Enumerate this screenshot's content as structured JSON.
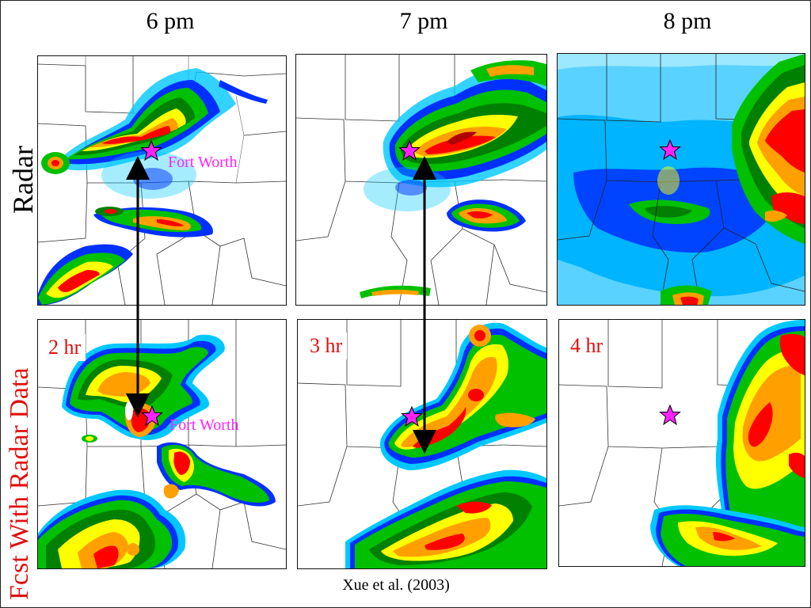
{
  "columns": {
    "col1": "6 pm",
    "col2": "7 pm",
    "col3": "8 pm"
  },
  "rows": {
    "top": "Radar",
    "bottom": "Fcst With Radar Data"
  },
  "panels": {
    "radar": [
      {
        "time": "6 pm",
        "city_label": "Fort Worth"
      },
      {
        "time": "7 pm"
      },
      {
        "time": "8 pm"
      }
    ],
    "forecast": [
      {
        "lead_label": "2 hr",
        "city_label": "Fort Worth"
      },
      {
        "lead_label": "3 hr"
      },
      {
        "lead_label": "4 hr"
      }
    ]
  },
  "city_marker": {
    "name": "Fort Worth",
    "symbol": "star-icon",
    "color": "#ff22ff"
  },
  "colors": {
    "row_top_label": "#000000",
    "row_bottom_label": "#e01010",
    "forecast_label": "#e01010",
    "reflectivity_scale": [
      "#00c8ff",
      "#0030ff",
      "#00c000",
      "#008000",
      "#ffff00",
      "#ffa000",
      "#ff0000",
      "#b00000"
    ]
  },
  "citation": "Xue et al. (2003)"
}
